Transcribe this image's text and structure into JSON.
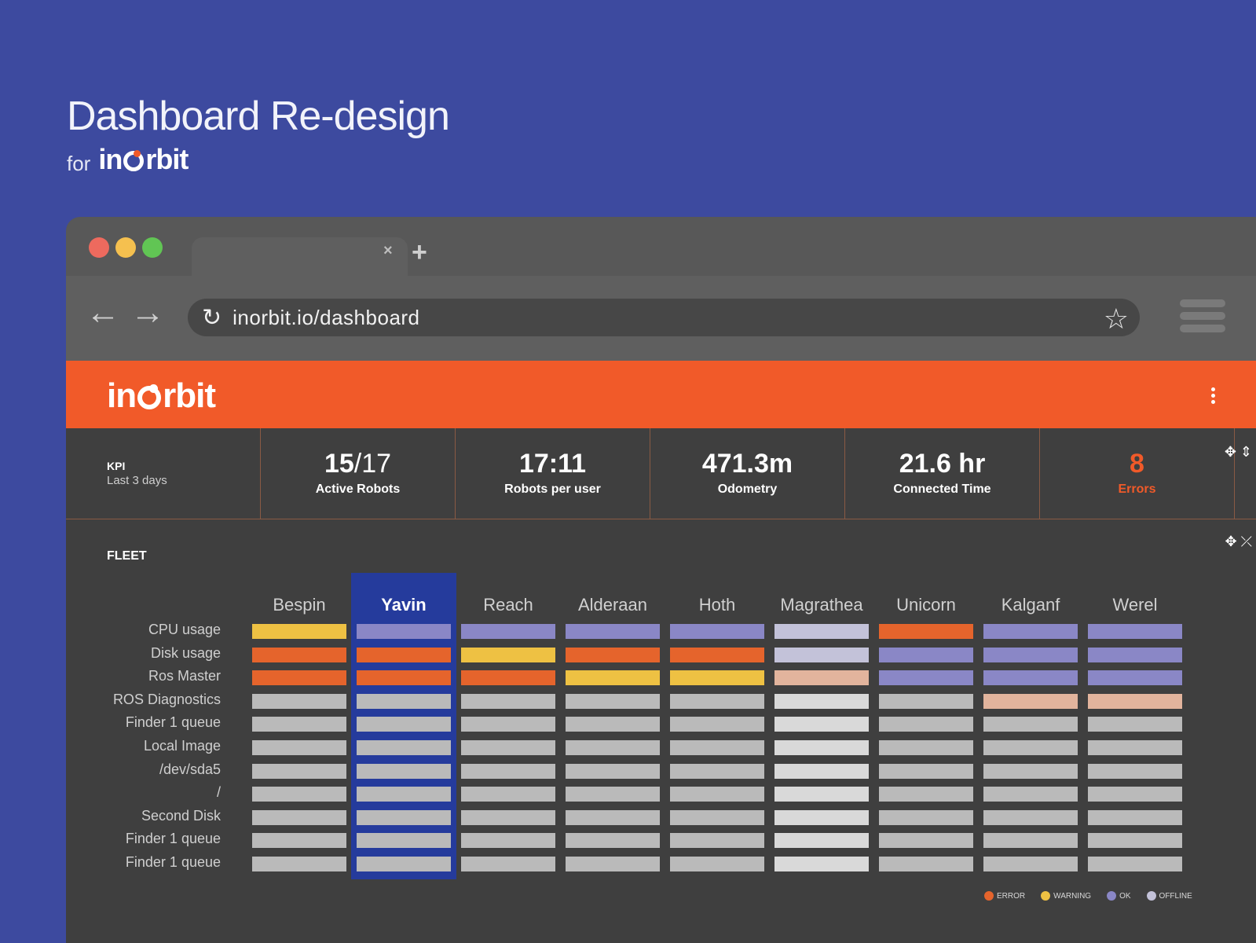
{
  "hero": {
    "title": "Dashboard Re-design",
    "for": "for",
    "brand_pre": "in",
    "brand_post": "rbit"
  },
  "browser": {
    "tab_close": "×",
    "tab_new": "+",
    "back": "←",
    "forward": "→",
    "reload": "↻",
    "url": "inorbit.io/dashboard",
    "star": "☆"
  },
  "app": {
    "brand_pre": "in",
    "brand_post": "rbit",
    "kpi": {
      "label": "KPI",
      "period": "Last 3 days",
      "items": [
        {
          "value": "15",
          "value_suffix": "/17",
          "caption": "Active Robots"
        },
        {
          "value": "17:11",
          "value_suffix": "",
          "caption": "Robots per user"
        },
        {
          "value": "471.3m",
          "value_suffix": "",
          "caption": "Odometry"
        },
        {
          "value": "21.6 hr",
          "value_suffix": "",
          "caption": "Connected Time"
        },
        {
          "value": "8",
          "value_suffix": "",
          "caption": "Errors"
        }
      ],
      "controls": "✥ ⇕"
    },
    "fleet": {
      "title": "FLEET",
      "controls": "✥ ⤫",
      "columns": [
        "Bespin",
        "Yavin",
        "Reach",
        "Alderaan",
        "Hoth",
        "Magrathea",
        "Unicorn",
        "Kalganf",
        "Werel"
      ],
      "active_column": 1,
      "rows": [
        "CPU usage",
        "Disk usage",
        "Ros Master",
        "ROS Diagnostics",
        "Finder 1 queue",
        "Local Image",
        "/dev/sda5",
        "/",
        "Second Disk",
        "Finder 1 queue",
        "Finder 1 queue"
      ],
      "status_grid": [
        [
          "warning",
          "ok",
          "ok",
          "ok",
          "ok",
          "offline",
          "error",
          "ok",
          "ok"
        ],
        [
          "error",
          "error",
          "warning",
          "error",
          "error",
          "offline",
          "ok",
          "ok",
          "ok"
        ],
        [
          "error",
          "error",
          "error",
          "warning",
          "warning",
          "peach",
          "ok",
          "ok",
          "ok"
        ],
        [
          "grey",
          "grey",
          "grey",
          "grey",
          "grey",
          "light",
          "grey",
          "peach",
          "peach"
        ],
        [
          "grey",
          "grey",
          "grey",
          "grey",
          "grey",
          "light",
          "grey",
          "grey",
          "grey"
        ],
        [
          "grey",
          "grey",
          "grey",
          "grey",
          "grey",
          "light",
          "grey",
          "grey",
          "grey"
        ],
        [
          "grey",
          "grey",
          "grey",
          "grey",
          "grey",
          "light",
          "grey",
          "grey",
          "grey"
        ],
        [
          "grey",
          "grey",
          "grey",
          "grey",
          "grey",
          "light",
          "grey",
          "grey",
          "grey"
        ],
        [
          "grey",
          "grey",
          "grey",
          "grey",
          "grey",
          "light",
          "grey",
          "grey",
          "grey"
        ],
        [
          "grey",
          "grey",
          "grey",
          "grey",
          "grey",
          "light",
          "grey",
          "grey",
          "grey"
        ],
        [
          "grey",
          "grey",
          "grey",
          "grey",
          "grey",
          "light",
          "grey",
          "grey",
          "grey"
        ]
      ],
      "status_colors": {
        "error": "#e5642c",
        "warning": "#eec143",
        "ok": "#8a87c6",
        "offline": "#c3c2d9",
        "peach": "#e2b49d",
        "grey": "#bababa",
        "light": "#d9d9d9"
      },
      "legend": [
        {
          "label": "ERROR",
          "color": "#e5642c"
        },
        {
          "label": "WARNING",
          "color": "#eec143"
        },
        {
          "label": "OK",
          "color": "#8a87c6"
        },
        {
          "label": "OFFLINE",
          "color": "#c3c2d9"
        }
      ]
    }
  }
}
